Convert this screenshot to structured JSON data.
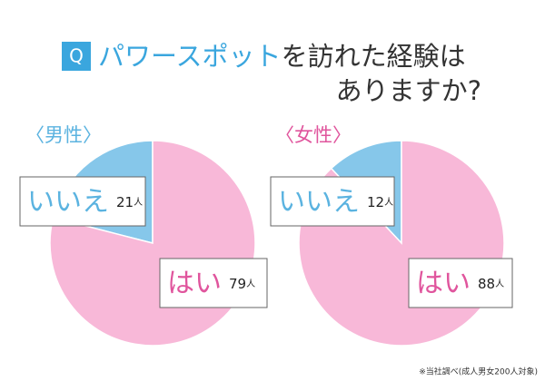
{
  "header": {
    "badge": "Q",
    "title_highlight": "パワースポット",
    "title_rest": "を訪れた経験は",
    "title_line2": "ありますか?"
  },
  "footnote": "※当社調べ(成人男女200人対象)",
  "chart_data": [
    {
      "type": "pie",
      "title": "〈男性〉",
      "title_color": "#5bb3e0",
      "categories": [
        "いいえ",
        "はい"
      ],
      "values": [
        21,
        79
      ],
      "unit": "人",
      "colors": [
        "#86c7ea",
        "#f8b8d8"
      ],
      "label_colors": [
        "#5bb3e0",
        "#e0559d"
      ]
    },
    {
      "type": "pie",
      "title": "〈女性〉",
      "title_color": "#e0559d",
      "categories": [
        "いいえ",
        "はい"
      ],
      "values": [
        12,
        88
      ],
      "unit": "人",
      "colors": [
        "#86c7ea",
        "#f8b8d8"
      ],
      "label_colors": [
        "#5bb3e0",
        "#e0559d"
      ]
    }
  ]
}
